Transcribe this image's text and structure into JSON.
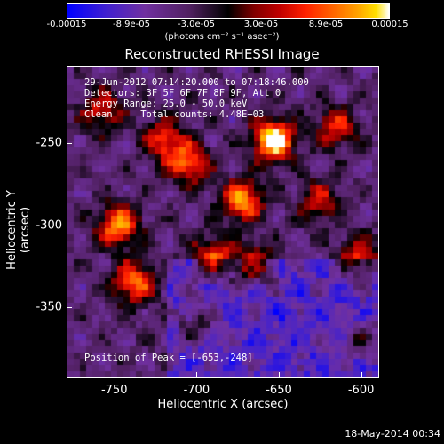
{
  "colorbar": {
    "ticks": [
      "-0.00015",
      "-8.9e-05",
      "-3.0e-05",
      "3.0e-05",
      "8.9e-05",
      "0.00015"
    ],
    "units": "(photons cm⁻² s⁻¹ asec⁻²)"
  },
  "chart_data": {
    "type": "heatmap",
    "title": "Reconstructed RHESSI Image",
    "xlabel": "Heliocentric X (arcsec)",
    "ylabel": "Heliocentric Y (arcsec)",
    "x_ticks": [
      "-750",
      "-700",
      "-650",
      "-600"
    ],
    "y_ticks": [
      "-250",
      "-300",
      "-350"
    ],
    "xlim": [
      -779,
      -589
    ],
    "ylim": [
      -393,
      -203
    ],
    "x_tick_values": [
      -750,
      -700,
      -650,
      -600
    ],
    "y_tick_values": [
      -250,
      -300,
      -350
    ],
    "color_range": [
      -0.00015,
      0.00015
    ],
    "peak": {
      "x": -653,
      "y": -248
    },
    "sources": [
      {
        "x": -653,
        "y": -248,
        "amp": 1.0
      },
      {
        "x": -672,
        "y": -285,
        "amp": 0.75
      },
      {
        "x": -748,
        "y": -300,
        "amp": 0.8
      },
      {
        "x": -738,
        "y": -335,
        "amp": 0.7
      },
      {
        "x": -705,
        "y": -262,
        "amp": 0.65
      },
      {
        "x": -720,
        "y": -248,
        "amp": 0.55
      },
      {
        "x": -690,
        "y": -320,
        "amp": 0.6
      },
      {
        "x": -665,
        "y": -325,
        "amp": 0.55
      },
      {
        "x": -615,
        "y": -240,
        "amp": 0.5
      },
      {
        "x": -600,
        "y": -320,
        "amp": 0.55
      },
      {
        "x": -625,
        "y": -285,
        "amp": 0.45
      },
      {
        "x": -758,
        "y": -230,
        "amp": 0.5
      },
      {
        "x": -700,
        "y": -360,
        "amp": 0.35
      },
      {
        "x": -600,
        "y": -370,
        "amp": 0.3
      }
    ],
    "annotations": [
      "29-Jun-2012 07:14:20.000 to 07:18:46.000",
      "Detectors: 3F 5F 6F 7F 8F 9F, Att 0",
      "Energy Range: 25.0 - 50.0 keV",
      "Clean     Total counts: 4.48E+03",
      "Position of Peak = [-653,-248]"
    ]
  },
  "footer": {
    "timestamp": "18-May-2014 00:34"
  }
}
